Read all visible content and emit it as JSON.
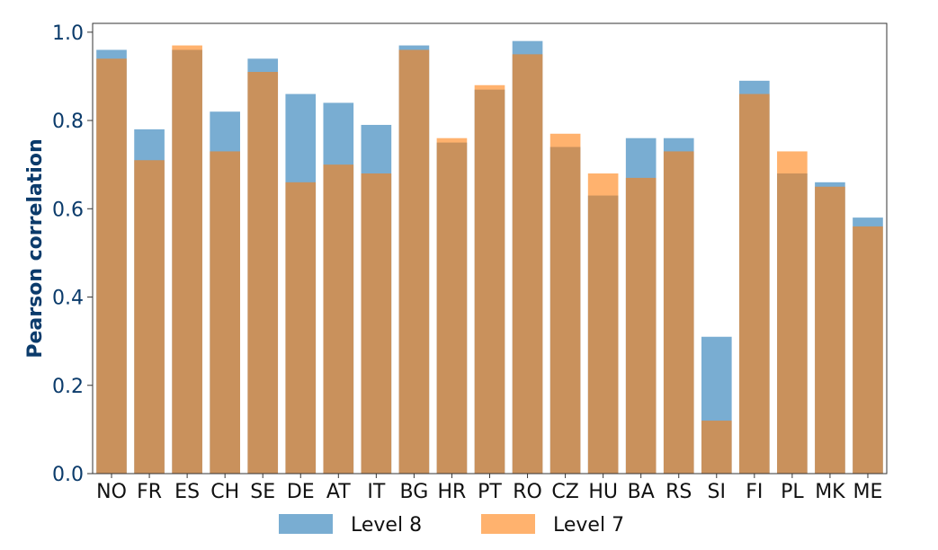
{
  "chart_data": {
    "type": "bar",
    "overlay": true,
    "categories": [
      "NO",
      "FR",
      "ES",
      "CH",
      "SE",
      "DE",
      "AT",
      "IT",
      "BG",
      "HR",
      "PT",
      "RO",
      "CZ",
      "HU",
      "BA",
      "RS",
      "SI",
      "FI",
      "PL",
      "MK",
      "ME"
    ],
    "series": [
      {
        "name": "Level 8",
        "color": "#1f77b4",
        "values": [
          0.96,
          0.78,
          0.96,
          0.82,
          0.94,
          0.86,
          0.84,
          0.79,
          0.97,
          0.75,
          0.87,
          0.98,
          0.74,
          0.63,
          0.76,
          0.76,
          0.31,
          0.89,
          0.68,
          0.66,
          0.58
        ]
      },
      {
        "name": "Level 7",
        "color": "#ff7f0e",
        "values": [
          0.94,
          0.71,
          0.97,
          0.73,
          0.91,
          0.66,
          0.7,
          0.68,
          0.96,
          0.76,
          0.88,
          0.95,
          0.77,
          0.68,
          0.67,
          0.73,
          0.12,
          0.86,
          0.73,
          0.65,
          0.56
        ]
      }
    ],
    "title": "",
    "xlabel": "",
    "ylabel": "Pearson correlation",
    "ylim": [
      0.0,
      1.02
    ],
    "yticks": [
      "0.0",
      "0.2",
      "0.4",
      "0.6",
      "0.8",
      "1.0"
    ],
    "grid": false,
    "legend_position": "bottom-center"
  }
}
